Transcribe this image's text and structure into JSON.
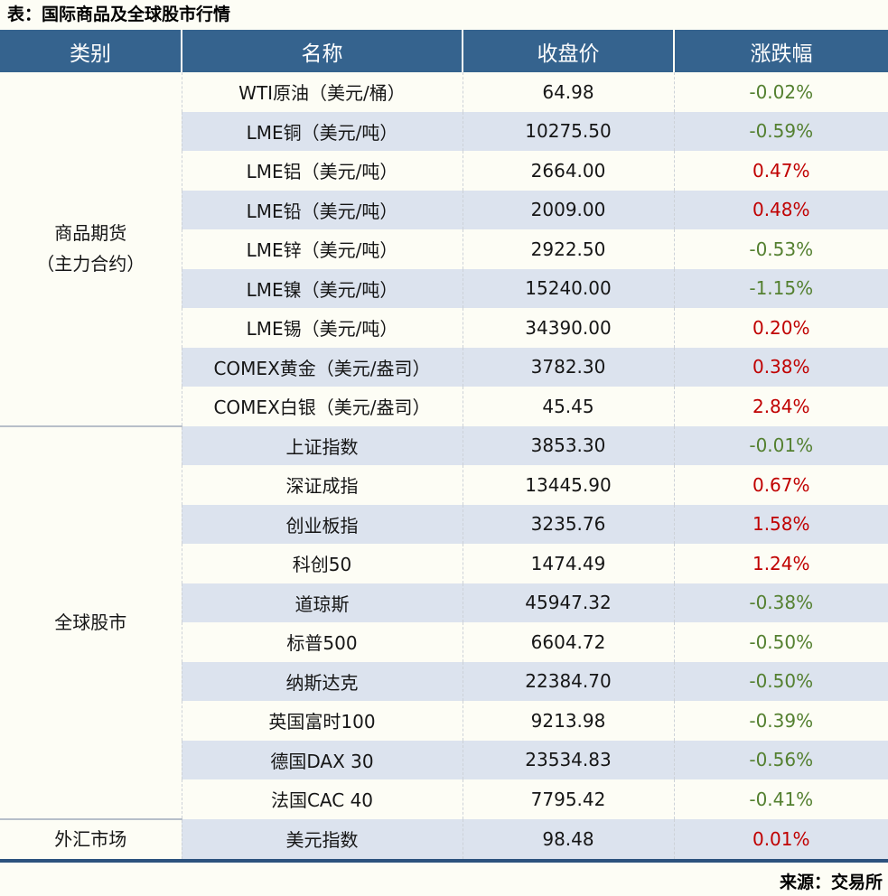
{
  "title": "表：国际商品及全球股市行情",
  "source": "来源：交易所",
  "colors": {
    "header_bg": "#35638e",
    "row_band_blue": "#dce3ee",
    "row_plain_cream": "#fdfdf5",
    "positive_red": "#c00000",
    "negative_green": "#548030",
    "bottom_line_blue": "#2c527e"
  },
  "table": {
    "headers": [
      "类别",
      "名称",
      "收盘价",
      "涨跌幅"
    ],
    "groups": [
      {
        "category_lines": [
          "商品期货",
          "（主力合约）"
        ],
        "rows": [
          {
            "name": "WTI原油（美元/桶）",
            "close": "64.98",
            "change": "-0.02%"
          },
          {
            "name": "LME铜（美元/吨）",
            "close": "10275.50",
            "change": "-0.59%"
          },
          {
            "name": "LME铝（美元/吨）",
            "close": "2664.00",
            "change": "0.47%"
          },
          {
            "name": "LME铅（美元/吨）",
            "close": "2009.00",
            "change": "0.48%"
          },
          {
            "name": "LME锌（美元/吨）",
            "close": "2922.50",
            "change": "-0.53%"
          },
          {
            "name": "LME镍（美元/吨）",
            "close": "15240.00",
            "change": "-1.15%"
          },
          {
            "name": "LME锡（美元/吨）",
            "close": "34390.00",
            "change": "0.20%"
          },
          {
            "name": "COMEX黄金（美元/盎司）",
            "close": "3782.30",
            "change": "0.38%"
          },
          {
            "name": "COMEX白银（美元/盎司）",
            "close": "45.45",
            "change": "2.84%"
          }
        ]
      },
      {
        "category_lines": [
          "全球股市"
        ],
        "rows": [
          {
            "name": "上证指数",
            "close": "3853.30",
            "change": "-0.01%"
          },
          {
            "name": "深证成指",
            "close": "13445.90",
            "change": "0.67%"
          },
          {
            "name": "创业板指",
            "close": "3235.76",
            "change": "1.58%"
          },
          {
            "name": "科创50",
            "close": "1474.49",
            "change": "1.24%"
          },
          {
            "name": "道琼斯",
            "close": "45947.32",
            "change": "-0.38%"
          },
          {
            "name": "标普500",
            "close": "6604.72",
            "change": "-0.50%"
          },
          {
            "name": "纳斯达克",
            "close": "22384.70",
            "change": "-0.50%"
          },
          {
            "name": "英国富时100",
            "close": "9213.98",
            "change": "-0.39%"
          },
          {
            "name": "德国DAX 30",
            "close": "23534.83",
            "change": "-0.56%"
          },
          {
            "name": "法国CAC 40",
            "close": "7795.42",
            "change": "-0.41%"
          }
        ]
      },
      {
        "category_lines": [
          "外汇市场"
        ],
        "rows": [
          {
            "name": "美元指数",
            "close": "98.48",
            "change": "0.01%"
          }
        ]
      }
    ]
  },
  "chart_data": {
    "type": "table",
    "title": "表：国际商品及全球股市行情",
    "columns": [
      "类别",
      "名称",
      "收盘价",
      "涨跌幅"
    ],
    "rows": [
      [
        "商品期货（主力合约）",
        "WTI原油（美元/桶）",
        64.98,
        "-0.02%"
      ],
      [
        "商品期货（主力合约）",
        "LME铜（美元/吨）",
        10275.5,
        "-0.59%"
      ],
      [
        "商品期货（主力合约）",
        "LME铝（美元/吨）",
        2664.0,
        "0.47%"
      ],
      [
        "商品期货（主力合约）",
        "LME铅（美元/吨）",
        2009.0,
        "0.48%"
      ],
      [
        "商品期货（主力合约）",
        "LME锌（美元/吨）",
        2922.5,
        "-0.53%"
      ],
      [
        "商品期货（主力合约）",
        "LME镍（美元/吨）",
        15240.0,
        "-1.15%"
      ],
      [
        "商品期货（主力合约）",
        "LME锡（美元/吨）",
        34390.0,
        "0.20%"
      ],
      [
        "商品期货（主力合约）",
        "COMEX黄金（美元/盎司）",
        3782.3,
        "0.38%"
      ],
      [
        "商品期货（主力合约）",
        "COMEX白银（美元/盎司）",
        45.45,
        "2.84%"
      ],
      [
        "全球股市",
        "上证指数",
        3853.3,
        "-0.01%"
      ],
      [
        "全球股市",
        "深证成指",
        13445.9,
        "0.67%"
      ],
      [
        "全球股市",
        "创业板指",
        3235.76,
        "1.58%"
      ],
      [
        "全球股市",
        "科创50",
        1474.49,
        "1.24%"
      ],
      [
        "全球股市",
        "道琼斯",
        45947.32,
        "-0.38%"
      ],
      [
        "全球股市",
        "标普500",
        6604.72,
        "-0.50%"
      ],
      [
        "全球股市",
        "纳斯达克",
        22384.7,
        "-0.50%"
      ],
      [
        "全球股市",
        "英国富时100",
        9213.98,
        "-0.39%"
      ],
      [
        "全球股市",
        "德国DAX 30",
        23534.83,
        "-0.56%"
      ],
      [
        "全球股市",
        "法国CAC 40",
        7795.42,
        "-0.41%"
      ],
      [
        "外汇市场",
        "美元指数",
        98.48,
        "0.01%"
      ]
    ],
    "notes": "负值为绿色，正值为红色；来源：交易所",
    "legend_position": "none",
    "grid": "row-banding"
  }
}
